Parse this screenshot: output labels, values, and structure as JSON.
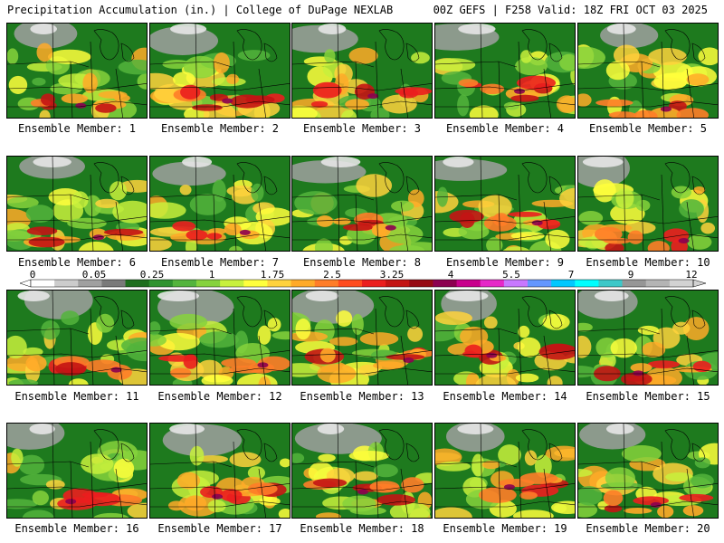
{
  "header": {
    "left": "Precipitation Accumulation (in.) | College of DuPage NEXLAB",
    "right": "00Z GEFS | F258 Valid: 18Z FRI OCT 03 2025"
  },
  "colorbar": {
    "labels": [
      "0",
      "0.05",
      "0.25",
      "1",
      "1.75",
      "2.5",
      "3.25",
      "4",
      "5.5",
      "7",
      "9",
      "12"
    ],
    "colors": [
      "#ffffff",
      "#cccccc",
      "#a0a0a0",
      "#7a7a7a",
      "#1e6e1e",
      "#2f932f",
      "#54b43c",
      "#86d23c",
      "#c8f03c",
      "#ffff3c",
      "#ffd23c",
      "#ffaa28",
      "#ff7d28",
      "#ff4b1e",
      "#eb1e1e",
      "#c31414",
      "#960a14",
      "#8c0050",
      "#c8008c",
      "#e628c8",
      "#c878ff",
      "#6496ff",
      "#00c8ff",
      "#00ffff",
      "#3cc8c8",
      "#969696",
      "#b4b4b4",
      "#d2d2d2"
    ]
  },
  "members": [
    {
      "label": "Ensemble Member: 1"
    },
    {
      "label": "Ensemble Member: 2"
    },
    {
      "label": "Ensemble Member: 3"
    },
    {
      "label": "Ensemble Member: 4"
    },
    {
      "label": "Ensemble Member: 5"
    },
    {
      "label": "Ensemble Member: 6"
    },
    {
      "label": "Ensemble Member: 7"
    },
    {
      "label": "Ensemble Member: 8"
    },
    {
      "label": "Ensemble Member: 9"
    },
    {
      "label": "Ensemble Member: 10"
    },
    {
      "label": "Ensemble Member: 11"
    },
    {
      "label": "Ensemble Member: 12"
    },
    {
      "label": "Ensemble Member: 13"
    },
    {
      "label": "Ensemble Member: 14"
    },
    {
      "label": "Ensemble Member: 15"
    },
    {
      "label": "Ensemble Member: 16"
    },
    {
      "label": "Ensemble Member: 17"
    },
    {
      "label": "Ensemble Member: 18"
    },
    {
      "label": "Ensemble Member: 19"
    },
    {
      "label": "Ensemble Member: 20"
    }
  ]
}
